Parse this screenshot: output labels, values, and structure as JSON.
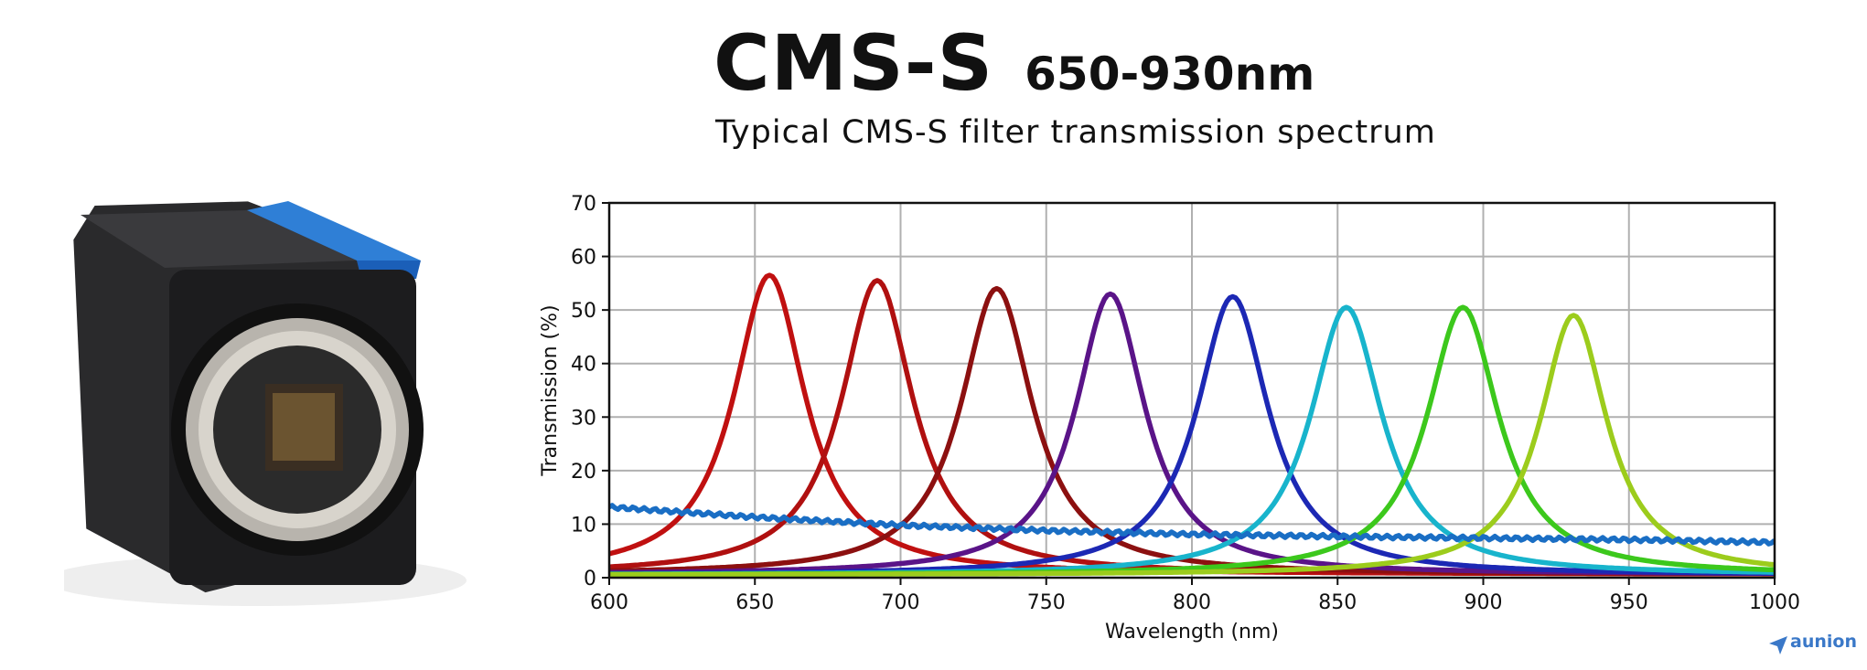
{
  "header": {
    "title": "CMS-S",
    "range": "650-930nm"
  },
  "brand": {
    "name": "aunion",
    "color": "#3a78c8"
  },
  "colors": {
    "camera_body": "#1c1c1e",
    "camera_accent": "#2f7fd6",
    "grid": "#b0b0b0"
  },
  "chart_data": {
    "type": "line",
    "title": "Typical CMS-S filter transmission spectrum",
    "xlabel": "Wavelength (nm)",
    "ylabel": "Transmission (%)",
    "xlim": [
      600,
      1000
    ],
    "ylim": [
      0,
      70
    ],
    "xticks": [
      600,
      650,
      700,
      750,
      800,
      850,
      900,
      950,
      1000
    ],
    "yticks": [
      0,
      10,
      20,
      30,
      40,
      50,
      60,
      70
    ],
    "grid": true,
    "series": [
      {
        "color": "#c01010",
        "peak_nm": 655,
        "peak_pct": 56.5,
        "fwhm_nm": 30,
        "floor_pct": 0.6
      },
      {
        "color": "#b01010",
        "peak_nm": 692,
        "peak_pct": 55.5,
        "fwhm_nm": 30,
        "floor_pct": 0.6
      },
      {
        "color": "#8c1010",
        "peak_nm": 733,
        "peak_pct": 54,
        "fwhm_nm": 30,
        "floor_pct": 0.6
      },
      {
        "color": "#5a1488",
        "peak_nm": 772,
        "peak_pct": 53,
        "fwhm_nm": 29,
        "floor_pct": 0.6
      },
      {
        "color": "#1c28b4",
        "peak_nm": 814,
        "peak_pct": 52.5,
        "fwhm_nm": 30,
        "floor_pct": 0.5
      },
      {
        "color": "#18b4cc",
        "peak_nm": 853,
        "peak_pct": 50.5,
        "fwhm_nm": 30,
        "floor_pct": 0.5
      },
      {
        "color": "#3cc81c",
        "peak_nm": 893,
        "peak_pct": 50.5,
        "fwhm_nm": 30,
        "floor_pct": 0.5
      },
      {
        "color": "#9ccc1c",
        "peak_nm": 931,
        "peak_pct": 49,
        "fwhm_nm": 28,
        "floor_pct": 0.5
      },
      {
        "color": "#1a6ec4",
        "x": [
          600,
          650,
          700,
          750,
          800,
          850,
          900,
          950,
          1000
        ],
        "y": [
          13.2,
          11.3,
          9.8,
          8.8,
          8.1,
          7.7,
          7.4,
          7.1,
          6.6
        ]
      }
    ]
  }
}
